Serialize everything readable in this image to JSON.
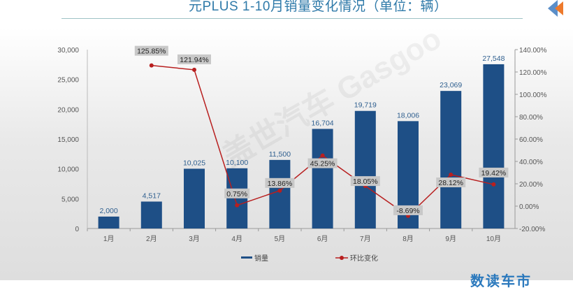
{
  "title": "元PLUS 1-10月销量变化情况（单位：辆）",
  "brand_text": "数读车市",
  "watermark": "盖世汽车 Gasgoo",
  "colors": {
    "bar": "#1e4f86",
    "line": "#b81f1f",
    "title": "#2f7aa9"
  },
  "chart_data": {
    "type": "bar+line",
    "categories": [
      "1月",
      "2月",
      "3月",
      "4月",
      "5月",
      "6月",
      "7月",
      "8月",
      "9月",
      "10月"
    ],
    "series": [
      {
        "name": "销量",
        "type": "bar",
        "axis": "left",
        "values": [
          2000,
          4517,
          10025,
          10100,
          11500,
          16704,
          19719,
          18006,
          23069,
          27548
        ],
        "labels": [
          "2,000",
          "4,517",
          "10,025",
          "10,100",
          "11,500",
          "16,704",
          "19,719",
          "18,006",
          "23,069",
          "27,548"
        ]
      },
      {
        "name": "环比变化",
        "type": "line",
        "axis": "right",
        "values": [
          null,
          125.85,
          121.94,
          0.75,
          13.86,
          45.25,
          18.05,
          -8.69,
          28.12,
          19.42
        ],
        "labels": [
          "",
          "125.85%",
          "121.94%",
          "0.75%",
          "13.86%",
          "45.25%",
          "18.05%",
          "-8.69%",
          "28.12%",
          "19.42%"
        ]
      }
    ],
    "y_left": {
      "range": [
        0,
        30000
      ],
      "ticks": [
        "0",
        "5,000",
        "10,000",
        "15,000",
        "20,000",
        "25,000",
        "30,000"
      ]
    },
    "y_right": {
      "range": [
        -20,
        140
      ],
      "ticks": [
        "-20.00%",
        "0.00%",
        "20.00%",
        "40.00%",
        "60.00%",
        "80.00%",
        "100.00%",
        "120.00%",
        "140.00%"
      ]
    },
    "grid": false,
    "legend": "bottom"
  }
}
